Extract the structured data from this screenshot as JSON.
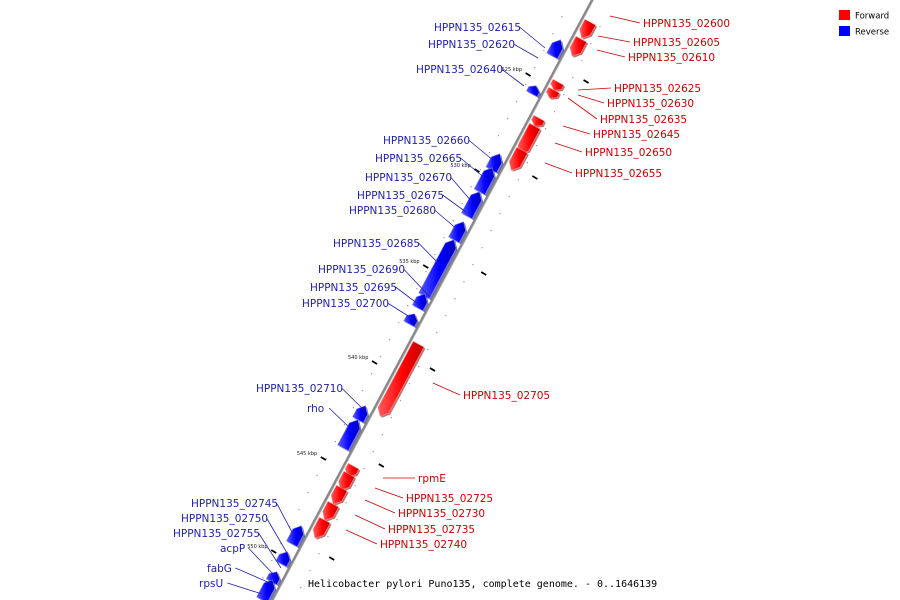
{
  "footer": "Helicobacter pylori Puno135, complete genome. - 0..1646139",
  "legend": [
    {
      "label": "Forward",
      "color": "#ff0000"
    },
    {
      "label": "Reverse",
      "color": "#0000ff"
    }
  ],
  "colors": {
    "forward": "#ff0000",
    "reverse": "#0000ff",
    "forward_label": "#cc0000",
    "reverse_label": "#1f1fb0",
    "backbone": "#888888"
  },
  "ticks": [
    {
      "label": "525 kbp"
    },
    {
      "label": "530 kbp"
    },
    {
      "label": "535 kbp"
    },
    {
      "label": "540 kbp"
    },
    {
      "label": "545 kbp"
    },
    {
      "label": "550 kbp"
    }
  ],
  "genes": [
    {
      "name": "HPPN135_02600",
      "strand": "forward"
    },
    {
      "name": "HPPN135_02605",
      "strand": "forward"
    },
    {
      "name": "HPPN135_02610",
      "strand": "forward"
    },
    {
      "name": "HPPN135_02615",
      "strand": "reverse"
    },
    {
      "name": "HPPN135_02620",
      "strand": "reverse"
    },
    {
      "name": "HPPN135_02640",
      "strand": "reverse"
    },
    {
      "name": "HPPN135_02625",
      "strand": "forward"
    },
    {
      "name": "HPPN135_02630",
      "strand": "forward"
    },
    {
      "name": "HPPN135_02635",
      "strand": "forward"
    },
    {
      "name": "HPPN135_02645",
      "strand": "forward"
    },
    {
      "name": "HPPN135_02650",
      "strand": "forward"
    },
    {
      "name": "HPPN135_02655",
      "strand": "forward"
    },
    {
      "name": "HPPN135_02660",
      "strand": "reverse"
    },
    {
      "name": "HPPN135_02665",
      "strand": "reverse"
    },
    {
      "name": "HPPN135_02670",
      "strand": "reverse"
    },
    {
      "name": "HPPN135_02675",
      "strand": "reverse"
    },
    {
      "name": "HPPN135_02680",
      "strand": "reverse"
    },
    {
      "name": "HPPN135_02685",
      "strand": "reverse"
    },
    {
      "name": "HPPN135_02690",
      "strand": "reverse"
    },
    {
      "name": "HPPN135_02695",
      "strand": "reverse"
    },
    {
      "name": "HPPN135_02700",
      "strand": "reverse"
    },
    {
      "name": "HPPN135_02705",
      "strand": "forward"
    },
    {
      "name": "HPPN135_02710",
      "strand": "reverse"
    },
    {
      "name": "rho",
      "strand": "reverse"
    },
    {
      "name": "rpmE",
      "strand": "forward"
    },
    {
      "name": "HPPN135_02725",
      "strand": "forward"
    },
    {
      "name": "HPPN135_02730",
      "strand": "forward"
    },
    {
      "name": "HPPN135_02735",
      "strand": "forward"
    },
    {
      "name": "HPPN135_02740",
      "strand": "forward"
    },
    {
      "name": "HPPN135_02745",
      "strand": "reverse"
    },
    {
      "name": "HPPN135_02750",
      "strand": "reverse"
    },
    {
      "name": "HPPN135_02755",
      "strand": "reverse"
    },
    {
      "name": "acpP",
      "strand": "reverse"
    },
    {
      "name": "fabG",
      "strand": "reverse"
    },
    {
      "name": "rpsU",
      "strand": "reverse"
    }
  ]
}
